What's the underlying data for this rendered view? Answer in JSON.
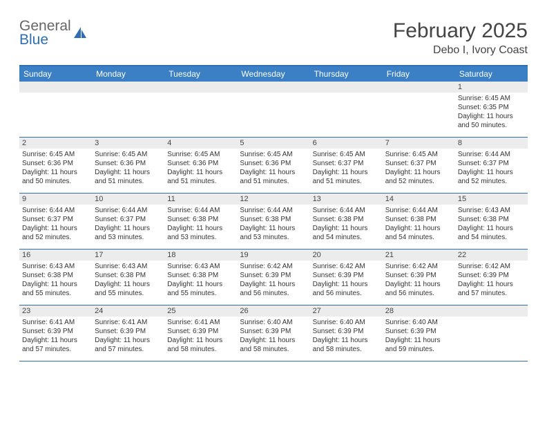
{
  "logo": {
    "word1": "General",
    "word2": "Blue"
  },
  "title": "February 2025",
  "subtitle": "Debo I, Ivory Coast",
  "colors": {
    "header_bg": "#3b7fc4",
    "header_border": "#2f6db5",
    "daynum_bg": "#ececec",
    "page_bg": "#ffffff",
    "text": "#333333"
  },
  "day_names": [
    "Sunday",
    "Monday",
    "Tuesday",
    "Wednesday",
    "Thursday",
    "Friday",
    "Saturday"
  ],
  "weeks": [
    [
      {
        "n": "",
        "sr": "",
        "ss": "",
        "dl": ""
      },
      {
        "n": "",
        "sr": "",
        "ss": "",
        "dl": ""
      },
      {
        "n": "",
        "sr": "",
        "ss": "",
        "dl": ""
      },
      {
        "n": "",
        "sr": "",
        "ss": "",
        "dl": ""
      },
      {
        "n": "",
        "sr": "",
        "ss": "",
        "dl": ""
      },
      {
        "n": "",
        "sr": "",
        "ss": "",
        "dl": ""
      },
      {
        "n": "1",
        "sr": "Sunrise: 6:45 AM",
        "ss": "Sunset: 6:35 PM",
        "dl": "Daylight: 11 hours and 50 minutes."
      }
    ],
    [
      {
        "n": "2",
        "sr": "Sunrise: 6:45 AM",
        "ss": "Sunset: 6:36 PM",
        "dl": "Daylight: 11 hours and 50 minutes."
      },
      {
        "n": "3",
        "sr": "Sunrise: 6:45 AM",
        "ss": "Sunset: 6:36 PM",
        "dl": "Daylight: 11 hours and 51 minutes."
      },
      {
        "n": "4",
        "sr": "Sunrise: 6:45 AM",
        "ss": "Sunset: 6:36 PM",
        "dl": "Daylight: 11 hours and 51 minutes."
      },
      {
        "n": "5",
        "sr": "Sunrise: 6:45 AM",
        "ss": "Sunset: 6:36 PM",
        "dl": "Daylight: 11 hours and 51 minutes."
      },
      {
        "n": "6",
        "sr": "Sunrise: 6:45 AM",
        "ss": "Sunset: 6:37 PM",
        "dl": "Daylight: 11 hours and 51 minutes."
      },
      {
        "n": "7",
        "sr": "Sunrise: 6:45 AM",
        "ss": "Sunset: 6:37 PM",
        "dl": "Daylight: 11 hours and 52 minutes."
      },
      {
        "n": "8",
        "sr": "Sunrise: 6:44 AM",
        "ss": "Sunset: 6:37 PM",
        "dl": "Daylight: 11 hours and 52 minutes."
      }
    ],
    [
      {
        "n": "9",
        "sr": "Sunrise: 6:44 AM",
        "ss": "Sunset: 6:37 PM",
        "dl": "Daylight: 11 hours and 52 minutes."
      },
      {
        "n": "10",
        "sr": "Sunrise: 6:44 AM",
        "ss": "Sunset: 6:37 PM",
        "dl": "Daylight: 11 hours and 53 minutes."
      },
      {
        "n": "11",
        "sr": "Sunrise: 6:44 AM",
        "ss": "Sunset: 6:38 PM",
        "dl": "Daylight: 11 hours and 53 minutes."
      },
      {
        "n": "12",
        "sr": "Sunrise: 6:44 AM",
        "ss": "Sunset: 6:38 PM",
        "dl": "Daylight: 11 hours and 53 minutes."
      },
      {
        "n": "13",
        "sr": "Sunrise: 6:44 AM",
        "ss": "Sunset: 6:38 PM",
        "dl": "Daylight: 11 hours and 54 minutes."
      },
      {
        "n": "14",
        "sr": "Sunrise: 6:44 AM",
        "ss": "Sunset: 6:38 PM",
        "dl": "Daylight: 11 hours and 54 minutes."
      },
      {
        "n": "15",
        "sr": "Sunrise: 6:43 AM",
        "ss": "Sunset: 6:38 PM",
        "dl": "Daylight: 11 hours and 54 minutes."
      }
    ],
    [
      {
        "n": "16",
        "sr": "Sunrise: 6:43 AM",
        "ss": "Sunset: 6:38 PM",
        "dl": "Daylight: 11 hours and 55 minutes."
      },
      {
        "n": "17",
        "sr": "Sunrise: 6:43 AM",
        "ss": "Sunset: 6:38 PM",
        "dl": "Daylight: 11 hours and 55 minutes."
      },
      {
        "n": "18",
        "sr": "Sunrise: 6:43 AM",
        "ss": "Sunset: 6:38 PM",
        "dl": "Daylight: 11 hours and 55 minutes."
      },
      {
        "n": "19",
        "sr": "Sunrise: 6:42 AM",
        "ss": "Sunset: 6:39 PM",
        "dl": "Daylight: 11 hours and 56 minutes."
      },
      {
        "n": "20",
        "sr": "Sunrise: 6:42 AM",
        "ss": "Sunset: 6:39 PM",
        "dl": "Daylight: 11 hours and 56 minutes."
      },
      {
        "n": "21",
        "sr": "Sunrise: 6:42 AM",
        "ss": "Sunset: 6:39 PM",
        "dl": "Daylight: 11 hours and 56 minutes."
      },
      {
        "n": "22",
        "sr": "Sunrise: 6:42 AM",
        "ss": "Sunset: 6:39 PM",
        "dl": "Daylight: 11 hours and 57 minutes."
      }
    ],
    [
      {
        "n": "23",
        "sr": "Sunrise: 6:41 AM",
        "ss": "Sunset: 6:39 PM",
        "dl": "Daylight: 11 hours and 57 minutes."
      },
      {
        "n": "24",
        "sr": "Sunrise: 6:41 AM",
        "ss": "Sunset: 6:39 PM",
        "dl": "Daylight: 11 hours and 57 minutes."
      },
      {
        "n": "25",
        "sr": "Sunrise: 6:41 AM",
        "ss": "Sunset: 6:39 PM",
        "dl": "Daylight: 11 hours and 58 minutes."
      },
      {
        "n": "26",
        "sr": "Sunrise: 6:40 AM",
        "ss": "Sunset: 6:39 PM",
        "dl": "Daylight: 11 hours and 58 minutes."
      },
      {
        "n": "27",
        "sr": "Sunrise: 6:40 AM",
        "ss": "Sunset: 6:39 PM",
        "dl": "Daylight: 11 hours and 58 minutes."
      },
      {
        "n": "28",
        "sr": "Sunrise: 6:40 AM",
        "ss": "Sunset: 6:39 PM",
        "dl": "Daylight: 11 hours and 59 minutes."
      },
      {
        "n": "",
        "sr": "",
        "ss": "",
        "dl": ""
      }
    ]
  ]
}
